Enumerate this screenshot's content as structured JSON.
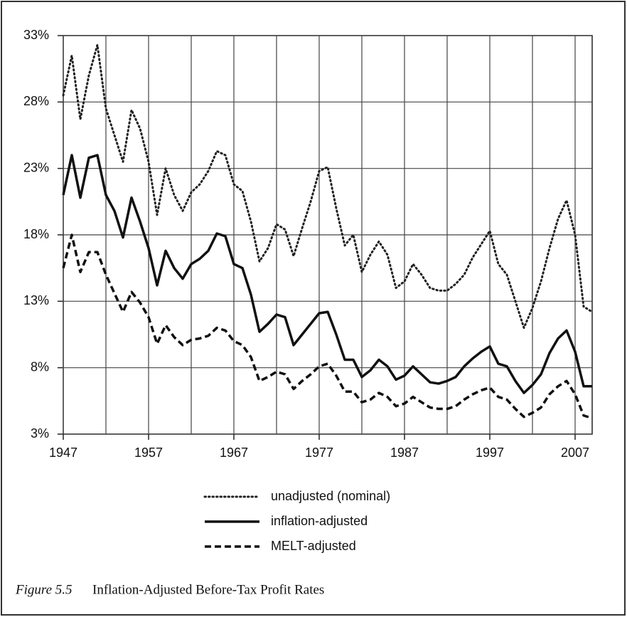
{
  "chart_data": {
    "type": "line",
    "caption_label": "Figure 5.5",
    "caption": "Inflation-Adjusted Before-Tax Profit Rates",
    "x": [
      1947,
      1948,
      1949,
      1950,
      1951,
      1952,
      1953,
      1954,
      1955,
      1956,
      1957,
      1958,
      1959,
      1960,
      1961,
      1962,
      1963,
      1964,
      1965,
      1966,
      1967,
      1968,
      1969,
      1970,
      1971,
      1972,
      1973,
      1974,
      1975,
      1976,
      1977,
      1978,
      1979,
      1980,
      1981,
      1982,
      1983,
      1984,
      1985,
      1986,
      1987,
      1988,
      1989,
      1990,
      1991,
      1992,
      1993,
      1994,
      1995,
      1996,
      1997,
      1998,
      1999,
      2000,
      2001,
      2002,
      2003,
      2004,
      2005,
      2006,
      2007,
      2008,
      2009
    ],
    "xlim": [
      1947,
      2009
    ],
    "xticks": [
      1947,
      1957,
      1967,
      1977,
      1987,
      1997,
      2007
    ],
    "xminor": [
      1952,
      1962,
      1972,
      1982,
      1992,
      2002
    ],
    "ylim": [
      3,
      33
    ],
    "yticks": [
      {
        "value": 3,
        "label": "3%"
      },
      {
        "value": 8,
        "label": "8%"
      },
      {
        "value": 13,
        "label": "13%"
      },
      {
        "value": 18,
        "label": "18%"
      },
      {
        "value": 23,
        "label": "23%"
      },
      {
        "value": 28,
        "label": "28%"
      },
      {
        "value": 33,
        "label": "33%"
      }
    ],
    "grid": true,
    "series": [
      {
        "name": "unadjusted (nominal)",
        "color": "#222222",
        "style": "dotted",
        "values": [
          28.5,
          31.5,
          26.7,
          30,
          32.3,
          27.5,
          25.5,
          23.5,
          27.4,
          26,
          23.5,
          19.5,
          23,
          21,
          19.8,
          21.2,
          21.8,
          22.8,
          24.3,
          24,
          21.8,
          21.3,
          19,
          16,
          17,
          18.8,
          18.4,
          16.4,
          18.5,
          20.5,
          22.8,
          23.1,
          20,
          17.2,
          18,
          15.2,
          16.5,
          17.5,
          16.5,
          14,
          14.5,
          15.8,
          15,
          14,
          13.8,
          13.8,
          14.3,
          15,
          16.3,
          17.3,
          18.3,
          15.8,
          15,
          13,
          11,
          12.5,
          14.5,
          17,
          19.2,
          20.6,
          18,
          12.6,
          12.2
        ]
      },
      {
        "name": "inflation-adjusted",
        "color": "#111111",
        "style": "solid",
        "values": [
          21,
          24,
          20.8,
          23.8,
          24,
          21,
          19.8,
          17.8,
          20.8,
          19,
          17,
          14.2,
          16.8,
          15.5,
          14.7,
          15.8,
          16.2,
          16.8,
          18.1,
          17.9,
          15.8,
          15.5,
          13.5,
          10.7,
          11.3,
          12,
          11.8,
          9.7,
          10.5,
          11.3,
          12.1,
          12.2,
          10.5,
          8.6,
          8.6,
          7.3,
          7.8,
          8.6,
          8.1,
          7.1,
          7.4,
          8.1,
          7.5,
          6.9,
          6.8,
          7,
          7.3,
          8.1,
          8.7,
          9.2,
          9.6,
          8.3,
          8.1,
          7,
          6.1,
          6.7,
          7.5,
          9.1,
          10.2,
          10.8,
          9.2,
          6.6,
          6.6
        ]
      },
      {
        "name": "MELT-adjusted",
        "color": "#111111",
        "style": "dashed",
        "values": [
          15.5,
          18,
          15.2,
          16.7,
          16.7,
          15,
          13.6,
          12.2,
          13.7,
          12.9,
          11.8,
          9.8,
          11.2,
          10.3,
          9.7,
          10.1,
          10.2,
          10.4,
          11,
          10.8,
          10,
          9.7,
          8.8,
          7,
          7.3,
          7.7,
          7.5,
          6.4,
          7,
          7.5,
          8.1,
          8.3,
          7.4,
          6.2,
          6.2,
          5.4,
          5.6,
          6.1,
          5.8,
          5.1,
          5.3,
          5.8,
          5.4,
          5,
          4.9,
          4.9,
          5.1,
          5.6,
          6,
          6.3,
          6.5,
          5.8,
          5.6,
          4.9,
          4.3,
          4.6,
          5,
          6,
          6.6,
          7,
          6,
          4.4,
          4.2
        ]
      }
    ]
  }
}
